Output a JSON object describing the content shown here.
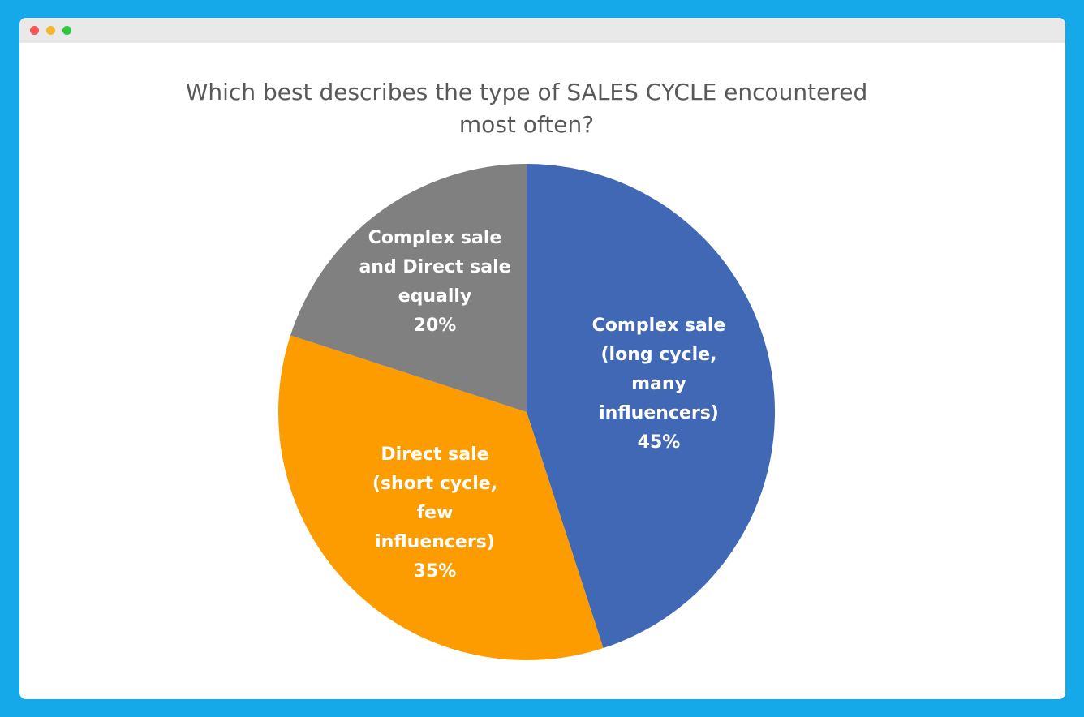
{
  "window": {
    "controls": [
      "close",
      "minimize",
      "maximize"
    ]
  },
  "chart_data": {
    "type": "pie",
    "title": "Which best describes the type of SALES CYCLE encountered most often?",
    "slices": [
      {
        "label_lines": [
          "Complex sale",
          "(long cycle,",
          "many",
          "influencers)"
        ],
        "value": 45,
        "value_label": "45%",
        "color": "#4068b4"
      },
      {
        "label_lines": [
          "Direct sale",
          "(short cycle,",
          "few",
          "influencers)"
        ],
        "value": 35,
        "value_label": "35%",
        "color": "#fd9c00"
      },
      {
        "label_lines": [
          "Complex sale",
          "and Direct sale",
          "equally"
        ],
        "value": 20,
        "value_label": "20%",
        "color": "#808080"
      }
    ],
    "start_angle": "12 o'clock",
    "direction": "clockwise",
    "legend": "none"
  }
}
